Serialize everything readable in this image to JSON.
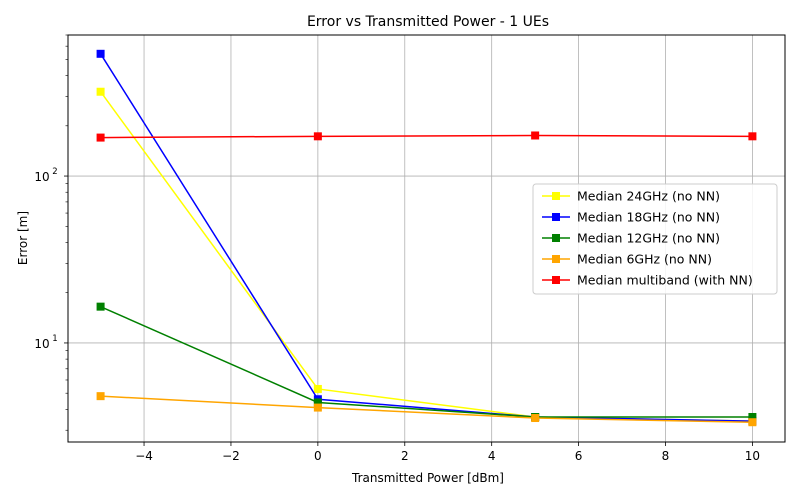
{
  "chart_data": {
    "type": "line",
    "title": "Error vs Transmitted Power - 1 UEs",
    "xlabel": "Transmitted Power [dBm]",
    "ylabel": "Error [m]",
    "x": [
      -5,
      0,
      5,
      10
    ],
    "xlim": [
      -5.75,
      10.75
    ],
    "ylim": [
      2.55,
      700
    ],
    "yscale": "log",
    "grid": true,
    "legend_position": "center-right",
    "x_ticks": [
      -4,
      -2,
      0,
      2,
      4,
      6,
      8,
      10
    ],
    "x_tick_labels": [
      "−4",
      "−2",
      "0",
      "2",
      "4",
      "6",
      "8",
      "10"
    ],
    "y_major_ticks": [
      10,
      100
    ],
    "y_major_tick_labels": [
      "10",
      "2"
    ],
    "y_tick_exponents": [
      "1",
      "2"
    ],
    "series": [
      {
        "name": "Median 24GHz (no NN)",
        "color": "#ffff00",
        "marker": "square",
        "values": [
          320,
          5.3,
          3.6,
          3.4
        ]
      },
      {
        "name": "Median 18GHz (no NN)",
        "color": "#0000ff",
        "marker": "square",
        "values": [
          540,
          4.6,
          3.6,
          3.4
        ]
      },
      {
        "name": "Median 12GHz (no NN)",
        "color": "#008000",
        "marker": "square",
        "values": [
          16.5,
          4.4,
          3.6,
          3.6
        ]
      },
      {
        "name": "Median 6GHz (no NN)",
        "color": "#ffa500",
        "marker": "square",
        "values": [
          4.8,
          4.1,
          3.55,
          3.35
        ]
      },
      {
        "name": "Median multiband (with NN)",
        "color": "#ff0000",
        "marker": "square",
        "values": [
          170,
          173,
          175,
          173
        ]
      }
    ]
  }
}
